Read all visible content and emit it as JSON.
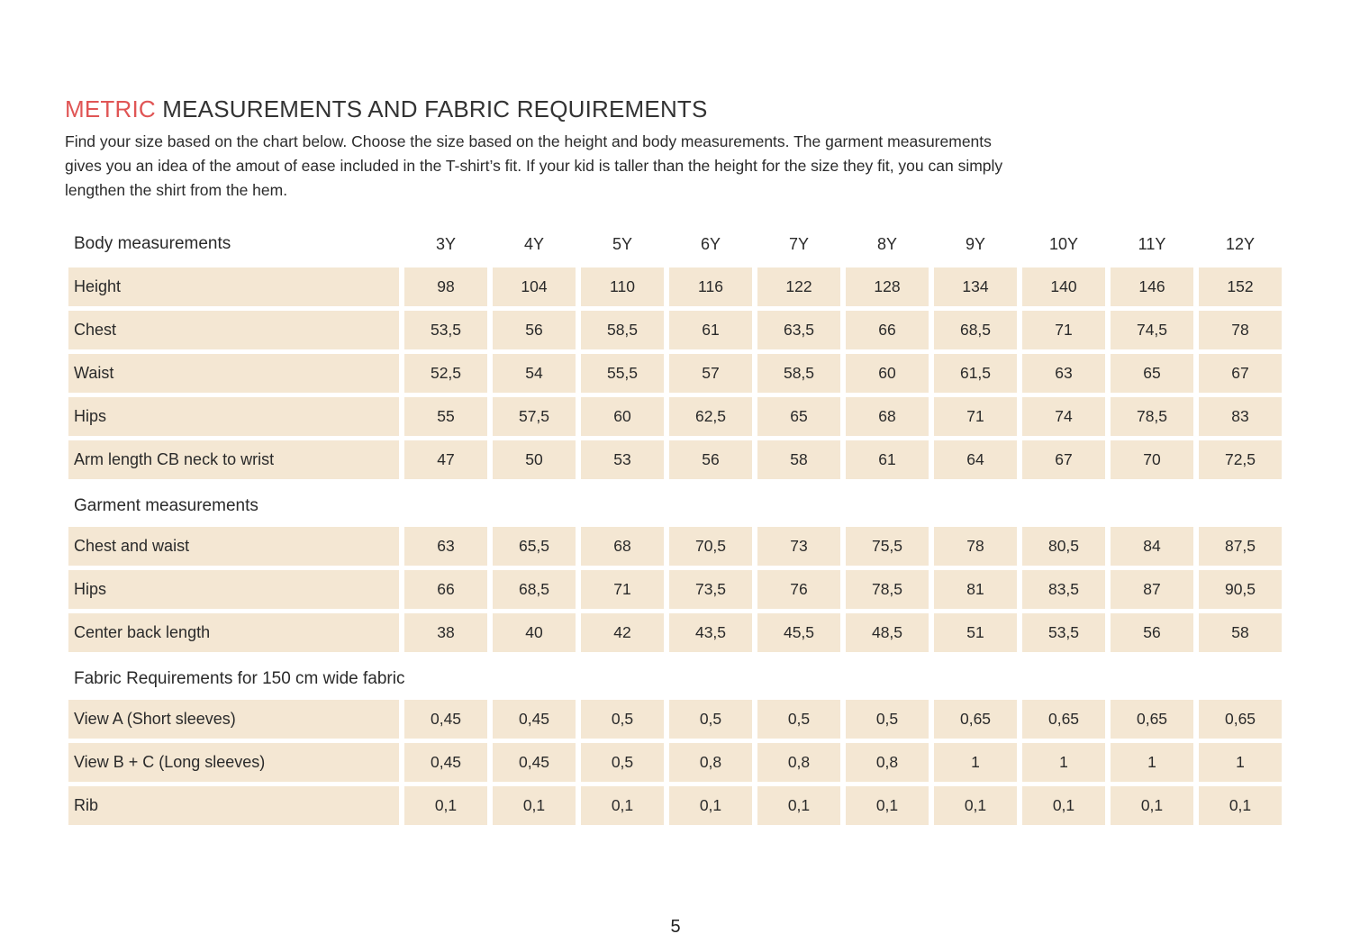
{
  "header": {
    "title_highlight": "METRIC",
    "title_rest": " MEASUREMENTS AND FABRIC REQUIREMENTS",
    "intro_lines": [
      "Find your size based on the chart below. Choose the size based on the height and body measurements. The garment measurements",
      "gives you an idea of the amout of ease included in the T-shirt’s fit. If your kid is taller than the height for the size they fit, you can simply",
      "lengthen the shirt from the hem."
    ]
  },
  "table": {
    "sizes": [
      "3Y",
      "4Y",
      "5Y",
      "6Y",
      "7Y",
      "8Y",
      "9Y",
      "10Y",
      "11Y",
      "12Y"
    ],
    "sections": [
      {
        "header": "Body measurements",
        "rows": [
          {
            "label": "Height",
            "values": [
              "98",
              "104",
              "110",
              "116",
              "122",
              "128",
              "134",
              "140",
              "146",
              "152"
            ]
          },
          {
            "label": "Chest",
            "values": [
              "53,5",
              "56",
              "58,5",
              "61",
              "63,5",
              "66",
              "68,5",
              "71",
              "74,5",
              "78"
            ]
          },
          {
            "label": "Waist",
            "values": [
              "52,5",
              "54",
              "55,5",
              "57",
              "58,5",
              "60",
              "61,5",
              "63",
              "65",
              "67"
            ]
          },
          {
            "label": "Hips",
            "values": [
              "55",
              "57,5",
              "60",
              "62,5",
              "65",
              "68",
              "71",
              "74",
              "78,5",
              "83"
            ]
          },
          {
            "label": "Arm length CB neck to wrist",
            "values": [
              "47",
              "50",
              "53",
              "56",
              "58",
              "61",
              "64",
              "67",
              "70",
              "72,5"
            ]
          }
        ]
      },
      {
        "header": "Garment measurements",
        "rows": [
          {
            "label": "Chest and waist",
            "values": [
              "63",
              "65,5",
              "68",
              "70,5",
              "73",
              "75,5",
              "78",
              "80,5",
              "84",
              "87,5"
            ]
          },
          {
            "label": "Hips",
            "values": [
              "66",
              "68,5",
              "71",
              "73,5",
              "76",
              "78,5",
              "81",
              "83,5",
              "87",
              "90,5"
            ]
          },
          {
            "label": "Center back length",
            "values": [
              "38",
              "40",
              "42",
              "43,5",
              "45,5",
              "48,5",
              "51",
              "53,5",
              "56",
              "58"
            ]
          }
        ]
      },
      {
        "header": "Fabric Requirements for 150 cm wide fabric",
        "rows": [
          {
            "label": "View A (Short sleeves)",
            "values": [
              "0,45",
              "0,45",
              "0,5",
              "0,5",
              "0,5",
              "0,5",
              "0,65",
              "0,65",
              "0,65",
              "0,65"
            ]
          },
          {
            "label": "View B + C (Long sleeves)",
            "values": [
              "0,45",
              "0,45",
              "0,5",
              "0,8",
              "0,8",
              "0,8",
              "1",
              "1",
              "1",
              "1"
            ]
          },
          {
            "label": "Rib",
            "values": [
              "0,1",
              "0,1",
              "0,1",
              "0,1",
              "0,1",
              "0,1",
              "0,1",
              "0,1",
              "0,1",
              "0,1"
            ]
          }
        ]
      }
    ]
  },
  "footer": {
    "page_number": "5"
  },
  "colors": {
    "accent_red": "#e05555",
    "cell_beige": "#f4e7d3",
    "text": "#2a2a2a"
  }
}
